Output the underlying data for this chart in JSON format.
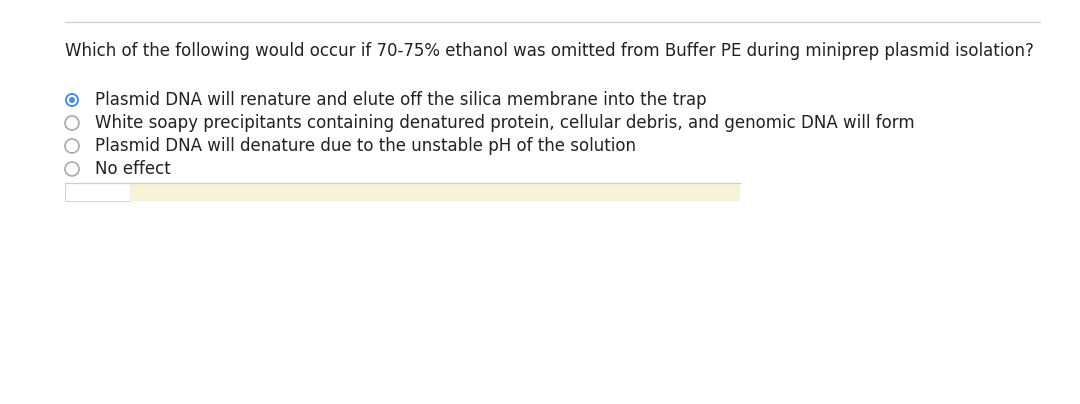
{
  "question": "Which of the following would occur if 70-75% ethanol was omitted from Buffer PE during miniprep plasmid isolation?",
  "options": [
    "Plasmid DNA will renature and elute off the silica membrane into the trap",
    "White soapy precipitants containing denatured protein, cellular debris, and genomic DNA will form",
    "Plasmid DNA will denature due to the unstable pH of the solution",
    "No effect"
  ],
  "selected_index": 0,
  "bg_color": "#ffffff",
  "question_color": "#222222",
  "option_color": "#222222",
  "selected_outer_color": "#4a90d9",
  "selected_inner_color": "#4a90d9",
  "unselected_ring_color": "#aaaaaa",
  "top_border_color": "#c8cdd8",
  "highlight_color": "#f7f3d8",
  "question_fontsize": 12,
  "option_fontsize": 12,
  "fig_width": 10.8,
  "fig_height": 4.04,
  "dpi": 100
}
